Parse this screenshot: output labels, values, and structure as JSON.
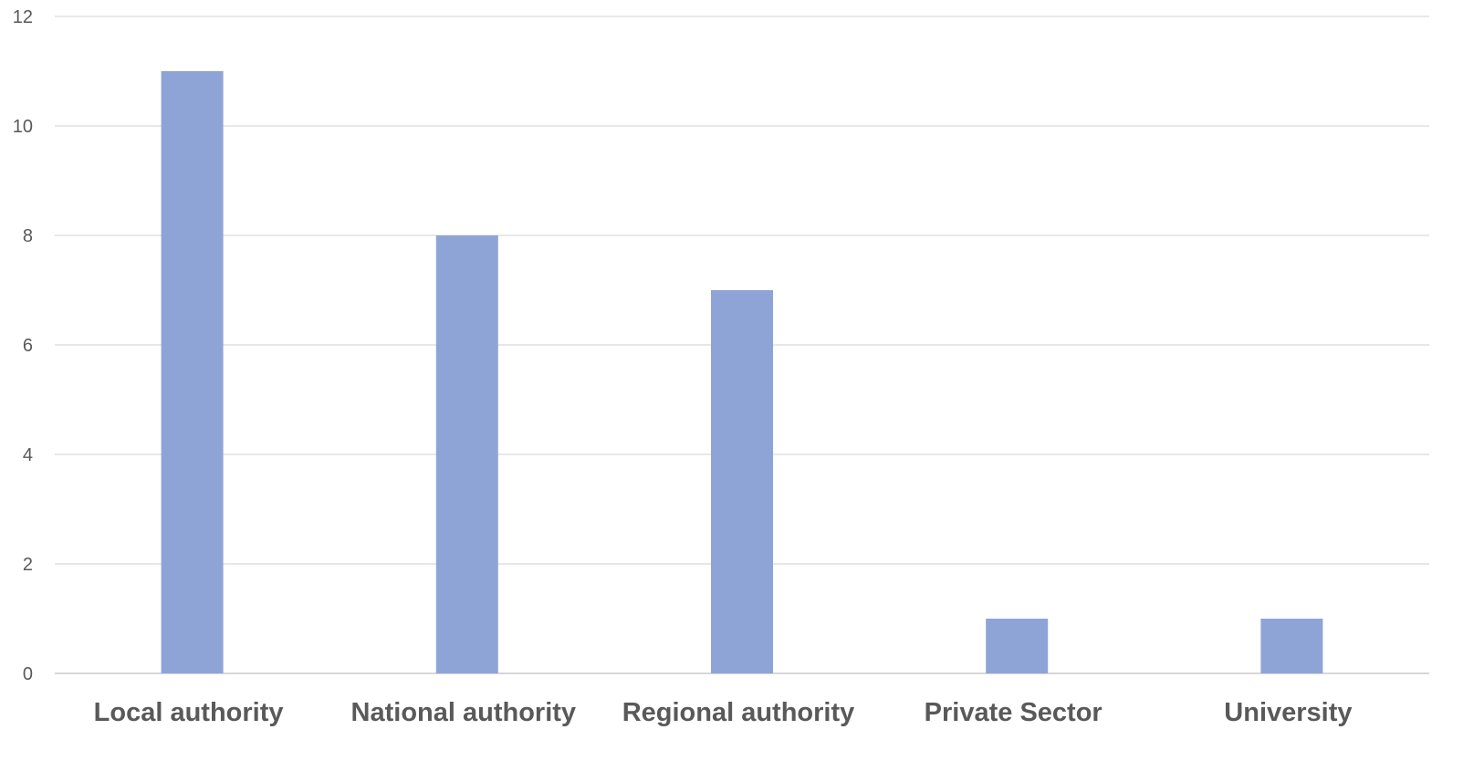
{
  "chart_data": {
    "type": "bar",
    "categories": [
      "Local authority",
      "National authority",
      "Regional authority",
      "Private Sector",
      "University"
    ],
    "values": [
      11,
      8,
      7,
      1,
      1
    ],
    "title": "",
    "xlabel": "",
    "ylabel": "",
    "ylim": [
      0,
      12
    ],
    "yticks": [
      "0",
      "2",
      "4",
      "6",
      "8",
      "10",
      "12"
    ],
    "grid": true,
    "legend": "none",
    "colors": {
      "bar": "#8FA4D6",
      "grid": "#D9D9D9",
      "axis": "#BFBFBF",
      "tick_label": "#595959",
      "category_label": "#595959"
    }
  }
}
